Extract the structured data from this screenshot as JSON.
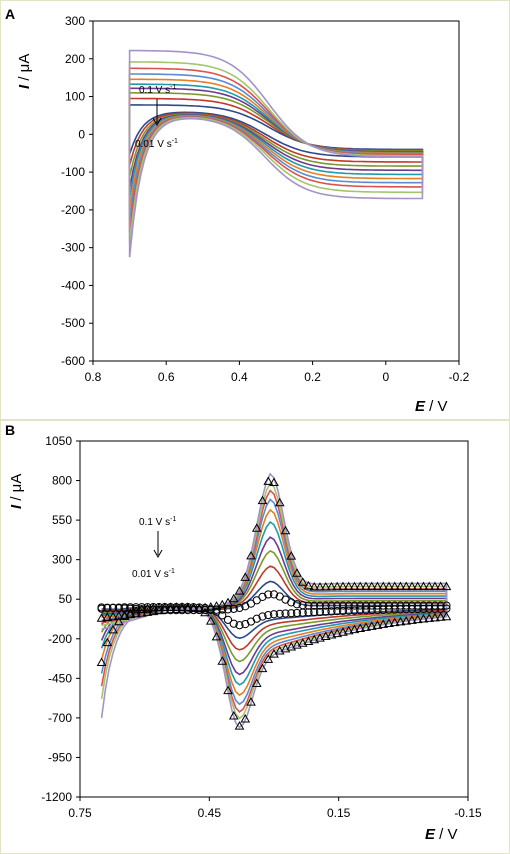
{
  "chart_data": [
    {
      "panel": "A",
      "type": "line",
      "xlabel": {
        "var": "E",
        "unit": " / V"
      },
      "ylabel": {
        "var": "I",
        "unit": " / μA"
      },
      "xlim": [
        0.8,
        -0.2
      ],
      "ylim": [
        -600,
        300
      ],
      "x_ticks": [
        "0.8",
        "0.6",
        "0.4",
        "0.2",
        "0",
        "-0.2"
      ],
      "y_ticks": [
        "300",
        "200",
        "100",
        "0",
        "-100",
        "-200",
        "-300",
        "-400",
        "-500",
        "-600"
      ],
      "annotation": {
        "top": "0.1 V s",
        "top_sup": "-1",
        "bottom": "0.01 V s",
        "bottom_sup": "-1"
      },
      "series": [
        {
          "color": "#2e4a8b",
          "E_start": 0.7,
          "E_end": -0.1,
          "I_top_end": 78,
          "I_bot_start": -175,
          "I_bot_end": 62,
          "wave": 0
        },
        {
          "color": "#c0392b",
          "E_start": 0.7,
          "E_end": -0.1,
          "I_top_end": 95,
          "I_bot_start": -215,
          "I_bot_end": 60,
          "wave": 0.12
        },
        {
          "color": "#7a9a2b",
          "E_start": 0.7,
          "E_end": -0.1,
          "I_top_end": 110,
          "I_bot_start": -255,
          "I_bot_end": 58,
          "wave": 0.22
        },
        {
          "color": "#6d3b8f",
          "E_start": 0.7,
          "E_end": -0.1,
          "I_top_end": 122,
          "I_bot_start": -295,
          "I_bot_end": 57,
          "wave": 0.32
        },
        {
          "color": "#1f9bb0",
          "E_start": 0.7,
          "E_end": -0.1,
          "I_top_end": 133,
          "I_bot_start": -330,
          "I_bot_end": 56,
          "wave": 0.42
        },
        {
          "color": "#e67e22",
          "E_start": 0.7,
          "E_end": -0.1,
          "I_top_end": 146,
          "I_bot_start": -370,
          "I_bot_end": 55,
          "wave": 0.52
        },
        {
          "color": "#5b8bd0",
          "E_start": 0.7,
          "E_end": -0.1,
          "I_top_end": 160,
          "I_bot_start": -410,
          "I_bot_end": 54,
          "wave": 0.62
        },
        {
          "color": "#d9534f",
          "E_start": 0.7,
          "E_end": -0.1,
          "I_top_end": 175,
          "I_bot_start": -450,
          "I_bot_end": 53,
          "wave": 0.72
        },
        {
          "color": "#a4c66a",
          "E_start": 0.7,
          "E_end": -0.1,
          "I_top_end": 192,
          "I_bot_start": -495,
          "I_bot_end": 52,
          "wave": 0.85
        },
        {
          "color": "#a593c7",
          "E_start": 0.7,
          "E_end": -0.1,
          "I_top_end": 222,
          "I_bot_start": -545,
          "I_bot_end": 50,
          "wave": 1.0
        }
      ]
    },
    {
      "panel": "B",
      "type": "line",
      "xlabel": {
        "var": "E",
        "unit": " / V"
      },
      "ylabel": {
        "var": "I",
        "unit": " / μA"
      },
      "xlim": [
        0.75,
        -0.15
      ],
      "ylim": [
        -1200,
        1050
      ],
      "x_ticks": [
        "0.75",
        "0.45",
        "0.15",
        "-0.15"
      ],
      "y_ticks": [
        "1050",
        "800",
        "550",
        "300",
        "50",
        "-200",
        "-450",
        "-700",
        "-950",
        "-1200"
      ],
      "annotation": {
        "top": "0.1 V s",
        "top_sup": "-1",
        "bottom": "0.01 V s",
        "bottom_sup": "-1"
      },
      "series": [
        {
          "color": "#2e4a8b",
          "ipa": 170,
          "ipc": -240,
          "start": -60,
          "tail_a": 30,
          "tail_c": -60
        },
        {
          "color": "#c0392b",
          "ipa": 260,
          "ipc": -330,
          "start": -110,
          "tail_a": 45,
          "tail_c": -110
        },
        {
          "color": "#7a9a2b",
          "ipa": 350,
          "ipc": -420,
          "start": -160,
          "tail_a": 60,
          "tail_c": -160
        },
        {
          "color": "#6d3b8f",
          "ipa": 430,
          "ipc": -520,
          "start": -210,
          "tail_a": 75,
          "tail_c": -210
        },
        {
          "color": "#1f9bb0",
          "ipa": 520,
          "ipc": -600,
          "start": -260,
          "tail_a": 90,
          "tail_c": -260
        },
        {
          "color": "#e67e22",
          "ipa": 590,
          "ipc": -680,
          "start": -330,
          "tail_a": 105,
          "tail_c": -300
        },
        {
          "color": "#5b8bd0",
          "ipa": 650,
          "ipc": -750,
          "start": -420,
          "tail_a": 120,
          "tail_c": -340
        },
        {
          "color": "#d9534f",
          "ipa": 700,
          "ipc": -810,
          "start": -500,
          "tail_a": 135,
          "tail_c": -380
        },
        {
          "color": "#a4c66a",
          "ipa": 740,
          "ipc": -860,
          "start": -580,
          "tail_a": 150,
          "tail_c": -410
        },
        {
          "color": "#a593c7",
          "ipa": 790,
          "ipc": -930,
          "start": -700,
          "tail_a": 170,
          "tail_c": -440
        }
      ],
      "markers": {
        "triangles": {
          "ipa": 770,
          "ipc": -920,
          "start": -350,
          "tail_a": 150
        },
        "circles": {
          "ipa": 90,
          "ipc": -140,
          "start": -10,
          "tail_a": 30
        }
      }
    }
  ]
}
